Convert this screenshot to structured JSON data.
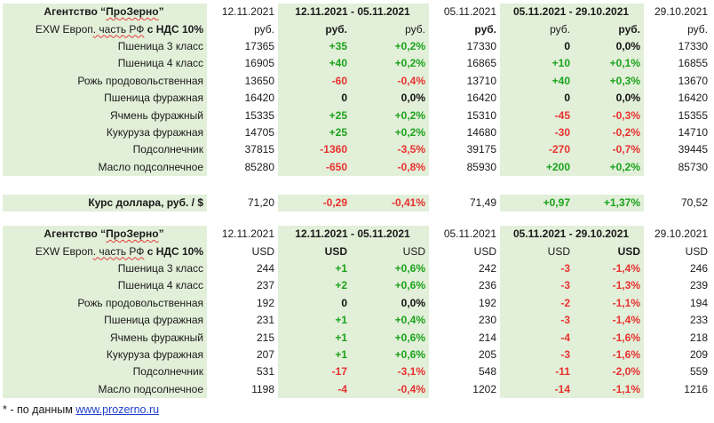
{
  "rub_table": {
    "header": {
      "title_prefix": "Агентство “",
      "title_brand": "ПроЗерно",
      "title_suffix": "”",
      "date1": "12.11.2021",
      "range1": "12.11.2021 - 05.11.2021",
      "date2": "05.11.2021",
      "range2": "05.11.2021 - 29.10.2021",
      "date3": "29.10.2021"
    },
    "units": {
      "label_part1": "EXW Европ",
      "label_part2": ". часть РФ",
      "label_part3": " с НДС 10%",
      "u1": "руб.",
      "u2": "руб.",
      "u3": "руб.",
      "u4": "руб.",
      "u5": "руб.",
      "u6": "руб.",
      "u7": "руб."
    },
    "rows": [
      {
        "name": "Пшеница 3 класс",
        "p1": "17365",
        "d1": "+35",
        "pc1": "+0,2%",
        "p2": "17330",
        "d2": "0",
        "pc2": "0,0%",
        "p3": "17330"
      },
      {
        "name": "Пшеница 4 класс",
        "p1": "16905",
        "d1": "+40",
        "pc1": "+0,2%",
        "p2": "16865",
        "d2": "+10",
        "pc2": "+0,1%",
        "p3": "16855"
      },
      {
        "name": "Рожь продовольственная",
        "p1": "13650",
        "d1": "-60",
        "pc1": "-0,4%",
        "p2": "13710",
        "d2": "+40",
        "pc2": "+0,3%",
        "p3": "13670"
      },
      {
        "name": "Пшеница фуражная",
        "p1": "16420",
        "d1": "0",
        "pc1": "0,0%",
        "p2": "16420",
        "d2": "0",
        "pc2": "0,0%",
        "p3": "16420"
      },
      {
        "name": "Ячмень фуражный",
        "p1": "15335",
        "d1": "+25",
        "pc1": "+0,2%",
        "p2": "15310",
        "d2": "-45",
        "pc2": "-0,3%",
        "p3": "15355"
      },
      {
        "name": "Кукуруза фуражная",
        "p1": "14705",
        "d1": "+25",
        "pc1": "+0,2%",
        "p2": "14680",
        "d2": "-30",
        "pc2": "-0,2%",
        "p3": "14710"
      },
      {
        "name": "Подсолнечник",
        "p1": "37815",
        "d1": "-1360",
        "pc1": "-3,5%",
        "p2": "39175",
        "d2": "-270",
        "pc2": "-0,7%",
        "p3": "39445"
      },
      {
        "name": "Масло подсолнечное",
        "p1": "85280",
        "d1": "-650",
        "pc1": "-0,8%",
        "p2": "85930",
        "d2": "+200",
        "pc2": "+0,2%",
        "p3": "85730"
      }
    ]
  },
  "rate_row": {
    "label": "Курс доллара, руб. / $",
    "v1": "71,20",
    "d1": "-0,29",
    "pc1": "-0,41%",
    "v2": "71,49",
    "d2": "+0,97",
    "pc2": "+1,37%",
    "v3": "70,52"
  },
  "usd_table": {
    "header": {
      "title_prefix": "Агентство “",
      "title_brand": "ПроЗерно",
      "title_suffix": "”",
      "date1": "12.11.2021",
      "range1": "12.11.2021 - 05.11.2021",
      "date2": "05.11.2021",
      "range2": "05.11.2021 - 29.10.2021",
      "date3": "29.10.2021"
    },
    "units": {
      "label_part1": "EXW Европ",
      "label_part2": ". часть РФ",
      "label_part3": " с НДС 10%",
      "u1": "USD",
      "u2": "USD",
      "u3": "USD",
      "u4": "USD",
      "u5": "USD",
      "u6": "USD",
      "u7": "USD"
    },
    "rows": [
      {
        "name": "Пшеница 3 класс",
        "p1": "244",
        "d1": "+1",
        "pc1": "+0,6%",
        "p2": "242",
        "d2": "-3",
        "pc2": "-1,4%",
        "p3": "246"
      },
      {
        "name": "Пшеница 4 класс",
        "p1": "237",
        "d1": "+2",
        "pc1": "+0,6%",
        "p2": "236",
        "d2": "-3",
        "pc2": "-1,3%",
        "p3": "239"
      },
      {
        "name": "Рожь продовольственная",
        "p1": "192",
        "d1": "0",
        "pc1": "0,0%",
        "p2": "192",
        "d2": "-2",
        "pc2": "-1,1%",
        "p3": "194"
      },
      {
        "name": "Пшеница фуражная",
        "p1": "231",
        "d1": "+1",
        "pc1": "+0,4%",
        "p2": "230",
        "d2": "-3",
        "pc2": "-1,4%",
        "p3": "233"
      },
      {
        "name": "Ячмень фуражный",
        "p1": "215",
        "d1": "+1",
        "pc1": "+0,6%",
        "p2": "214",
        "d2": "-4",
        "pc2": "-1,6%",
        "p3": "218"
      },
      {
        "name": "Кукуруза фуражная",
        "p1": "207",
        "d1": "+1",
        "pc1": "+0,6%",
        "p2": "205",
        "d2": "-3",
        "pc2": "-1,6%",
        "p3": "209"
      },
      {
        "name": "Подсолнечник",
        "p1": "531",
        "d1": "-17",
        "pc1": "-3,1%",
        "p2": "548",
        "d2": "-11",
        "pc2": "-2,0%",
        "p3": "559"
      },
      {
        "name": "Масло подсолнечное",
        "p1": "1198",
        "d1": "-4",
        "pc1": "-0,4%",
        "p2": "1202",
        "d2": "-14",
        "pc2": "-1,1%",
        "p3": "1216"
      }
    ]
  },
  "footnote": {
    "text": "* - по данным ",
    "link": "www.prozerno.ru"
  },
  "colors": {
    "highlight_bg": "#e2efd9",
    "positive": "#1ba31b",
    "negative": "#e8322f",
    "link": "#1f3fcf"
  }
}
